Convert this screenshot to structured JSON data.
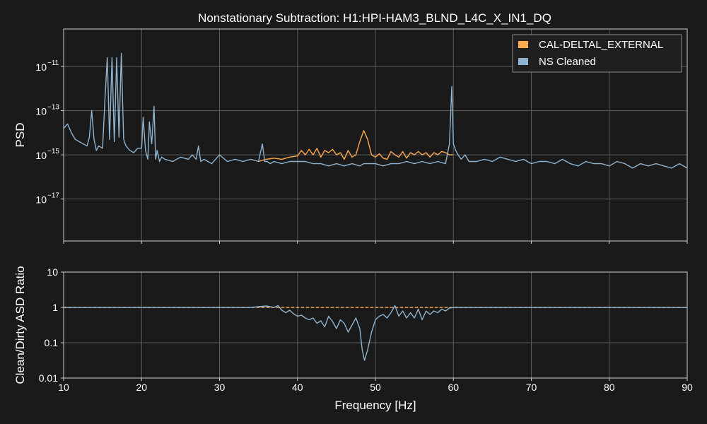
{
  "chart_data": [
    {
      "type": "line",
      "title": "Nonstationary Subtraction: H1:HPI-HAM3_BLND_L4C_X_IN1_DQ",
      "xlabel": "",
      "ylabel": "PSD",
      "xlim": [
        10,
        90
      ],
      "ylim_log10": [
        -18.9,
        -9.3
      ],
      "yscale": "log",
      "yticks": [
        {
          "exp": -11,
          "label": "10",
          "sup": "−11"
        },
        {
          "exp": -13,
          "label": "10",
          "sup": "−13"
        },
        {
          "exp": -15,
          "label": "10",
          "sup": "−15"
        },
        {
          "exp": -17,
          "label": "10",
          "sup": "−17"
        }
      ],
      "grid": true,
      "legend_position": "top-right",
      "series": [
        {
          "name": "CAL-DELTAL_EXTERNAL",
          "color": "#ffa94d",
          "x": [
            35,
            36,
            37,
            38,
            39,
            40,
            40.5,
            41,
            41.5,
            42,
            42.5,
            43,
            43.5,
            44,
            44.5,
            45,
            45.5,
            46,
            46.5,
            47,
            47.5,
            48,
            48.5,
            49,
            49.5,
            50,
            50.5,
            51,
            51.5,
            52,
            52.5,
            53,
            53.5,
            54,
            54.5,
            55,
            55.5,
            56,
            56.5,
            57,
            57.5,
            58,
            58.5,
            59,
            59.5,
            60
          ],
          "y_log10": [
            -15.3,
            -15.2,
            -15.15,
            -15.2,
            -15.1,
            -15.05,
            -14.8,
            -15.0,
            -14.75,
            -15.0,
            -14.7,
            -15.1,
            -14.8,
            -14.9,
            -14.75,
            -15.0,
            -14.9,
            -15.2,
            -14.8,
            -15.1,
            -15.0,
            -14.4,
            -13.9,
            -14.3,
            -15.0,
            -15.1,
            -14.95,
            -15.15,
            -15.2,
            -14.85,
            -15.0,
            -15.1,
            -14.85,
            -15.15,
            -14.9,
            -15.0,
            -14.85,
            -15.0,
            -14.9,
            -15.1,
            -14.9,
            -15.0,
            -14.85,
            -14.9,
            -15.0,
            -15.0
          ]
        },
        {
          "name": "NS Cleaned",
          "color": "#8fb3cf",
          "x": [
            10,
            10.5,
            11,
            11.5,
            12,
            12.5,
            13,
            13.3,
            13.6,
            13.9,
            14.2,
            14.5,
            15,
            15.3,
            15.6,
            15.9,
            16.2,
            16.5,
            16.8,
            17.1,
            17.4,
            17.7,
            18,
            18.5,
            19,
            19.5,
            20,
            20.2,
            20.5,
            20.8,
            21,
            21.3,
            21.6,
            21.8,
            22,
            22.3,
            22.6,
            23,
            24,
            25,
            26,
            26.5,
            27,
            27.3,
            27.6,
            28,
            29,
            30,
            31,
            32,
            33,
            34,
            35,
            35.5,
            35.8,
            36.1,
            36.5,
            37,
            38,
            39,
            40,
            41,
            42,
            43,
            44,
            45,
            46,
            47,
            48,
            48.5,
            49,
            50,
            51,
            52,
            53,
            54,
            55,
            56,
            57,
            58,
            59,
            59.5,
            59.8,
            60,
            60.3,
            60.6,
            61,
            61.5,
            62,
            63,
            64,
            65,
            66,
            67,
            68,
            69,
            70,
            71,
            72,
            73,
            74,
            75,
            76,
            77,
            78,
            79,
            80,
            81,
            82,
            83,
            84,
            85,
            86,
            87,
            88,
            89,
            90
          ],
          "y_log10": [
            -13.8,
            -13.6,
            -14.0,
            -14.3,
            -14.4,
            -14.5,
            -14.6,
            -14.2,
            -13.0,
            -14.3,
            -14.8,
            -14.6,
            -14.7,
            -12.5,
            -10.6,
            -14.3,
            -10.6,
            -14.4,
            -10.6,
            -14.2,
            -10.4,
            -14.3,
            -14.6,
            -14.8,
            -14.9,
            -14.7,
            -14.7,
            -13.3,
            -14.8,
            -15.2,
            -13.5,
            -14.5,
            -12.8,
            -15.2,
            -14.8,
            -15.3,
            -15.1,
            -15.2,
            -15.3,
            -15.1,
            -15.2,
            -15.0,
            -15.2,
            -14.6,
            -15.3,
            -15.2,
            -15.4,
            -15.0,
            -15.3,
            -15.2,
            -15.3,
            -15.2,
            -15.3,
            -14.5,
            -15.3,
            -15.3,
            -15.4,
            -15.3,
            -15.4,
            -15.3,
            -15.3,
            -15.3,
            -15.4,
            -15.4,
            -15.5,
            -15.4,
            -15.5,
            -15.4,
            -15.5,
            -15.4,
            -15.4,
            -15.4,
            -15.5,
            -15.4,
            -15.4,
            -15.3,
            -15.4,
            -15.3,
            -15.4,
            -15.3,
            -15.4,
            -14.5,
            -11.9,
            -14.5,
            -14.8,
            -15.0,
            -15.2,
            -15.0,
            -15.3,
            -15.3,
            -15.2,
            -15.3,
            -15.1,
            -15.2,
            -15.3,
            -15.2,
            -15.4,
            -15.3,
            -15.3,
            -15.4,
            -15.2,
            -15.4,
            -15.5,
            -15.3,
            -15.4,
            -15.4,
            -15.5,
            -15.3,
            -15.4,
            -15.6,
            -15.4,
            -15.5,
            -15.4,
            -15.5,
            -15.6,
            -15.4,
            -15.6
          ]
        }
      ]
    },
    {
      "type": "line",
      "title": "",
      "xlabel": "Frequency [Hz]",
      "ylabel": "Clean/Dirty ASD Ratio",
      "xlim": [
        10,
        90
      ],
      "xticks": [
        10,
        20,
        30,
        40,
        50,
        60,
        70,
        80,
        90
      ],
      "ylim": [
        0.01,
        10
      ],
      "yscale": "log",
      "yticks": [
        {
          "exp": 1,
          "label": "10"
        },
        {
          "exp": 0,
          "label": "1"
        },
        {
          "exp": -1,
          "label": "0.1"
        },
        {
          "exp": -2,
          "label": "0.01"
        }
      ],
      "grid": true,
      "series": [
        {
          "color": "#ffa94d",
          "dashed": true,
          "x": [
            10,
            90
          ],
          "y_log10": [
            0,
            0
          ]
        },
        {
          "color": "#8fb3cf",
          "x": [
            10,
            34,
            35,
            36,
            37,
            37.5,
            38,
            38.5,
            39,
            39.5,
            40,
            40.5,
            41,
            41.5,
            42,
            42.5,
            43,
            43.5,
            44,
            44.5,
            45,
            45.5,
            46,
            46.5,
            47,
            47.5,
            48,
            48.3,
            48.6,
            49,
            49.5,
            50,
            50.5,
            51,
            51.5,
            52,
            52.5,
            53,
            53.5,
            54,
            54.5,
            55,
            55.5,
            56,
            56.5,
            57,
            57.5,
            58,
            58.5,
            59,
            59.5,
            60,
            90
          ],
          "y_log10": [
            0,
            0,
            0.02,
            0.04,
            0.0,
            0.05,
            -0.08,
            -0.15,
            -0.08,
            -0.18,
            -0.25,
            -0.22,
            -0.3,
            -0.35,
            -0.3,
            -0.45,
            -0.38,
            -0.55,
            -0.25,
            -0.4,
            -0.6,
            -0.35,
            -0.45,
            -0.7,
            -0.5,
            -0.3,
            -0.6,
            -1.2,
            -1.5,
            -1.2,
            -0.7,
            -0.35,
            -0.25,
            -0.2,
            -0.3,
            -0.15,
            0.05,
            -0.25,
            -0.1,
            -0.3,
            -0.15,
            -0.3,
            -0.05,
            -0.35,
            -0.1,
            -0.2,
            -0.1,
            -0.15,
            -0.05,
            -0.1,
            -0.02,
            0,
            0
          ]
        }
      ]
    }
  ]
}
